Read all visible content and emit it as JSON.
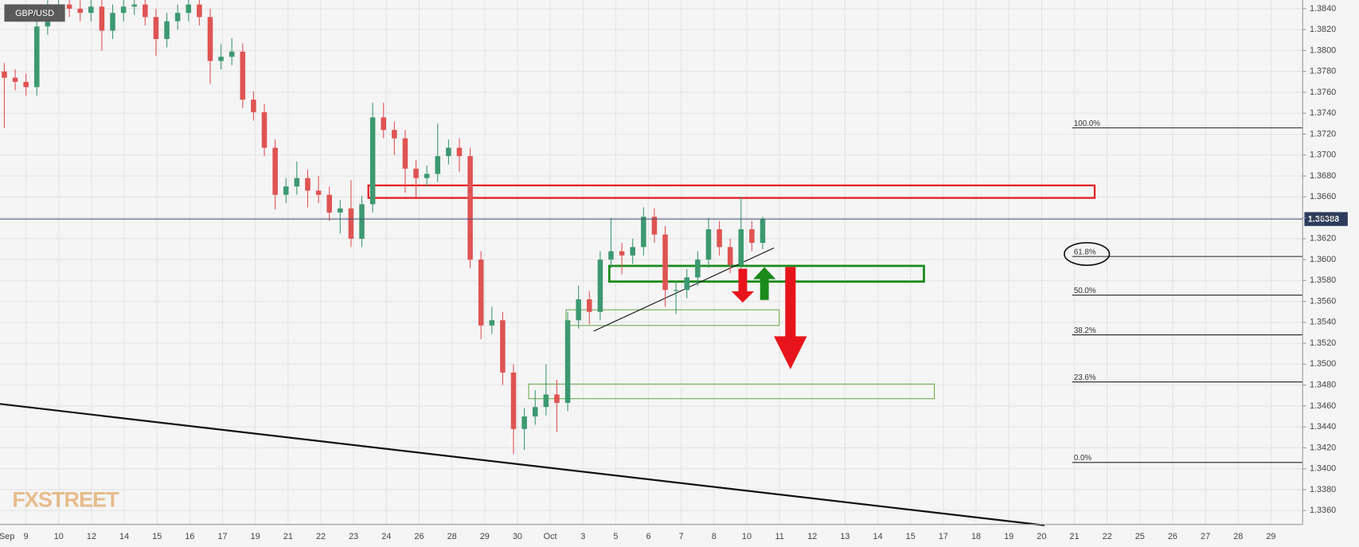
{
  "chart_data": {
    "type": "candlestick",
    "title": "GBP/USD",
    "watermark": "FXSTREET",
    "up_color": "#3d9970",
    "down_color": "#e05353",
    "open": [
      1.378,
      1.3774,
      1.377,
      1.3765,
      1.3823,
      1.384,
      1.3844,
      1.384,
      1.3836,
      1.3842,
      1.3819,
      1.3836,
      1.3842,
      1.3844,
      1.3832,
      1.3811,
      1.3828,
      1.3836,
      1.3844,
      1.3832,
      1.379,
      1.3794,
      1.3799,
      1.3753,
      1.3741,
      1.3707,
      1.3662,
      1.367,
      1.3678,
      1.3666,
      1.3662,
      1.3645,
      1.3649,
      1.362,
      1.3653,
      1.3736,
      1.3724,
      1.3716,
      1.3687,
      1.3678,
      1.3682,
      1.3699,
      1.3707,
      1.3699,
      1.36,
      1.3537,
      1.3542,
      1.3492,
      1.3438,
      1.345,
      1.3459,
      1.3471,
      1.3463,
      1.3542,
      1.3562,
      1.355,
      1.36,
      1.3608,
      1.3604,
      1.3612,
      1.3641,
      1.3624,
      1.3571,
      1.3571,
      1.3583,
      1.36,
      1.3629,
      1.3612,
      1.3595,
      1.3629,
      1.3616
    ],
    "high": [
      1.3788,
      1.3782,
      1.3778,
      1.3831,
      1.3848,
      1.3852,
      1.3852,
      1.3848,
      1.385,
      1.385,
      1.3844,
      1.385,
      1.3852,
      1.3852,
      1.384,
      1.3836,
      1.3844,
      1.3852,
      1.3852,
      1.384,
      1.3806,
      1.3812,
      1.3807,
      1.3761,
      1.3749,
      1.3715,
      1.3678,
      1.3694,
      1.3686,
      1.368,
      1.367,
      1.3657,
      1.3676,
      1.3661,
      1.375,
      1.375,
      1.3732,
      1.3724,
      1.3695,
      1.369,
      1.373,
      1.3715,
      1.3716,
      1.3707,
      1.3608,
      1.3555,
      1.355,
      1.35,
      1.3458,
      1.3475,
      1.35,
      1.3485,
      1.355,
      1.3575,
      1.357,
      1.3608,
      1.364,
      1.3616,
      1.362,
      1.365,
      1.3649,
      1.3632,
      1.358,
      1.3591,
      1.3608,
      1.364,
      1.3637,
      1.362,
      1.366,
      1.3637,
      1.3641
    ],
    "low": [
      1.3726,
      1.3762,
      1.3757,
      1.3757,
      1.3815,
      1.3832,
      1.3832,
      1.3828,
      1.3828,
      1.38,
      1.3811,
      1.3828,
      1.3834,
      1.3824,
      1.3795,
      1.3803,
      1.382,
      1.3828,
      1.3824,
      1.3768,
      1.3782,
      1.3786,
      1.3745,
      1.3733,
      1.3699,
      1.3648,
      1.3654,
      1.3662,
      1.365,
      1.3654,
      1.3637,
      1.3625,
      1.3612,
      1.3612,
      1.3645,
      1.3716,
      1.37,
      1.3664,
      1.366,
      1.367,
      1.3674,
      1.3691,
      1.3684,
      1.3592,
      1.3524,
      1.3529,
      1.348,
      1.3414,
      1.3418,
      1.3442,
      1.3451,
      1.3435,
      1.3455,
      1.3534,
      1.3538,
      1.3542,
      1.3592,
      1.3586,
      1.3596,
      1.3604,
      1.3616,
      1.3555,
      1.3548,
      1.3563,
      1.3575,
      1.3592,
      1.3604,
      1.3587,
      1.3587,
      1.3608,
      1.361
    ],
    "close": [
      1.3774,
      1.377,
      1.3765,
      1.3823,
      1.384,
      1.3844,
      1.384,
      1.3836,
      1.3842,
      1.3819,
      1.3836,
      1.3842,
      1.3844,
      1.3832,
      1.3811,
      1.3828,
      1.3836,
      1.3844,
      1.3832,
      1.379,
      1.3794,
      1.3799,
      1.3753,
      1.3741,
      1.3707,
      1.3662,
      1.367,
      1.3678,
      1.3666,
      1.3662,
      1.3645,
      1.3649,
      1.362,
      1.3653,
      1.3736,
      1.3724,
      1.3716,
      1.3687,
      1.3678,
      1.3682,
      1.3699,
      1.3707,
      1.3699,
      1.36,
      1.3537,
      1.3542,
      1.3492,
      1.3438,
      1.345,
      1.3459,
      1.3471,
      1.3463,
      1.3542,
      1.3562,
      1.355,
      1.36,
      1.3608,
      1.3604,
      1.3612,
      1.3641,
      1.3624,
      1.3571,
      1.3571,
      1.3583,
      1.36,
      1.3629,
      1.3612,
      1.3595,
      1.3629,
      1.3616,
      1.3639
    ],
    "ylim": [
      1.33467,
      1.38483
    ],
    "yticks": [
      {
        "value": 1.336,
        "label": "1.3360"
      },
      {
        "value": 1.338,
        "label": "1.3380"
      },
      {
        "value": 1.34,
        "label": "1.3400"
      },
      {
        "value": 1.342,
        "label": "1.3420"
      },
      {
        "value": 1.344,
        "label": "1.3440"
      },
      {
        "value": 1.346,
        "label": "1.3460"
      },
      {
        "value": 1.348,
        "label": "1.3480"
      },
      {
        "value": 1.35,
        "label": "1.3500"
      },
      {
        "value": 1.352,
        "label": "1.3520"
      },
      {
        "value": 1.354,
        "label": "1.3540"
      },
      {
        "value": 1.356,
        "label": "1.3560"
      },
      {
        "value": 1.358,
        "label": "1.3580"
      },
      {
        "value": 1.36,
        "label": "1.3600"
      },
      {
        "value": 1.362,
        "label": "1.3620"
      },
      {
        "value": 1.364,
        "label": "1.3640"
      },
      {
        "value": 1.366,
        "label": "1.3660"
      },
      {
        "value": 1.368,
        "label": "1.3680"
      },
      {
        "value": 1.37,
        "label": "1.3700"
      },
      {
        "value": 1.372,
        "label": "1.3720"
      },
      {
        "value": 1.374,
        "label": "1.3740"
      },
      {
        "value": 1.376,
        "label": "1.3760"
      },
      {
        "value": 1.378,
        "label": "1.3780"
      },
      {
        "value": 1.38,
        "label": "1.3800"
      },
      {
        "value": 1.382,
        "label": "1.3820"
      },
      {
        "value": 1.384,
        "label": "1.3840"
      }
    ],
    "xtick_labels": [
      "Sep",
      "9",
      "10",
      "12",
      "14",
      "15",
      "16",
      "17",
      "19",
      "21",
      "22",
      "23",
      "24",
      "26",
      "28",
      "29",
      "30",
      "Oct",
      "3",
      "5",
      "6",
      "7",
      "8",
      "10",
      "11",
      "12",
      "13",
      "14",
      "15",
      "17",
      "18",
      "19",
      "20",
      "21",
      "22",
      "25",
      "26",
      "27",
      "28",
      "29"
    ],
    "grid": true,
    "last_price": 1.36388,
    "fib_levels": [
      {
        "label": "100.0%",
        "value": 1.3726
      },
      {
        "label": "61.8%",
        "value": 1.3603
      },
      {
        "label": "50.0%",
        "value": 1.3566
      },
      {
        "label": "38.2%",
        "value": 1.3528
      },
      {
        "label": "23.6%",
        "value": 1.3483
      },
      {
        "label": "0.0%",
        "value": 1.3406
      }
    ],
    "zones": [
      {
        "top": 1.3671,
        "bottom": 1.3659,
        "color": "#e8141b"
      },
      {
        "top": 1.3594,
        "bottom": 1.3579,
        "color": "#1a8a1a"
      },
      {
        "top": 1.3552,
        "bottom": 1.3537,
        "color": "#6ab04c"
      },
      {
        "top": 1.3481,
        "bottom": 1.3467,
        "color": "#6ab04c"
      }
    ]
  }
}
